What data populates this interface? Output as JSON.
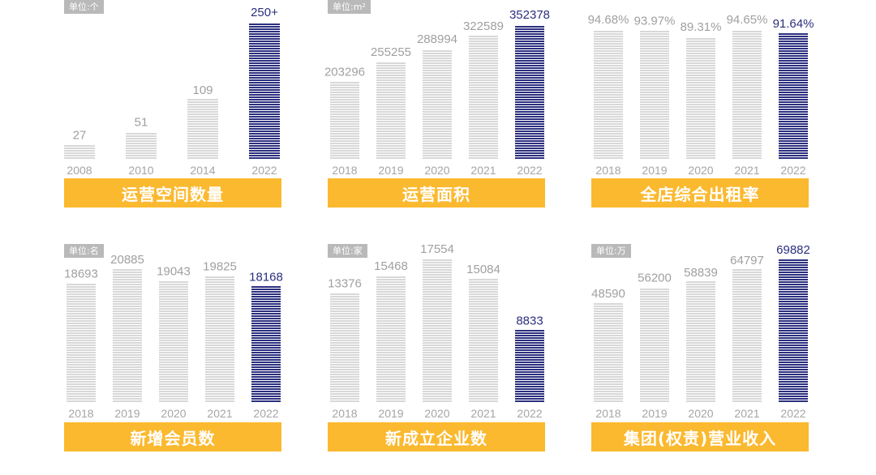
{
  "colors": {
    "gray": "#d8d8d8",
    "navy": "#2b2f7e",
    "banner": "#fbb92f",
    "label_gray": "#a0a0a0"
  },
  "chart_data": [
    {
      "type": "bar",
      "title": "运营空间数量",
      "unit": "单位:个",
      "categories": [
        "2008",
        "2010",
        "2014",
        "2022"
      ],
      "values": [
        27,
        51,
        109,
        250
      ],
      "labels": [
        "27",
        "51",
        "109",
        "250+"
      ],
      "ylim": [
        0,
        250
      ]
    },
    {
      "type": "bar",
      "title": "运营面积",
      "unit": "单位:m²",
      "categories": [
        "2018",
        "2019",
        "2020",
        "2021",
        "2022"
      ],
      "values": [
        203296,
        255255,
        288994,
        322589,
        352378
      ],
      "labels": [
        "203296",
        "255255",
        "288994",
        "322589",
        "352378"
      ],
      "ylim": [
        0,
        352378
      ]
    },
    {
      "type": "bar",
      "title": "全店综合出租率",
      "unit": "",
      "categories": [
        "2018",
        "2019",
        "2020",
        "2021",
        "2022"
      ],
      "values": [
        94.68,
        93.97,
        89.31,
        94.65,
        91.64
      ],
      "labels": [
        "94.68%",
        "93.97%",
        "89.31%",
        "94.65%",
        "91.64%"
      ],
      "ylim": [
        0,
        100
      ]
    },
    {
      "type": "bar",
      "title": "新增会员数",
      "unit": "单位:名",
      "categories": [
        "2018",
        "2019",
        "2020",
        "2021",
        "2022"
      ],
      "values": [
        18693,
        20885,
        19043,
        19825,
        18168
      ],
      "labels": [
        "18693",
        "20885",
        "19043",
        "19825",
        "18168"
      ],
      "ylim": [
        0,
        20885
      ]
    },
    {
      "type": "bar",
      "title": "新成立企业数",
      "unit": "单位:家",
      "categories": [
        "2018",
        "2019",
        "2020",
        "2021",
        "2022"
      ],
      "values": [
        13376,
        15468,
        17554,
        15084,
        8833
      ],
      "labels": [
        "13376",
        "15468",
        "17554",
        "15084",
        "8833"
      ],
      "ylim": [
        0,
        17554
      ]
    },
    {
      "type": "bar",
      "title": "集团(权责)营业收入",
      "unit": "单位:万",
      "categories": [
        "2018",
        "2019",
        "2020",
        "2021",
        "2022"
      ],
      "values": [
        48590,
        56200,
        58839,
        64797,
        69882
      ],
      "labels": [
        "48590",
        "56200",
        "58839",
        "64797",
        "69882"
      ],
      "ylim": [
        0,
        69882
      ]
    }
  ]
}
